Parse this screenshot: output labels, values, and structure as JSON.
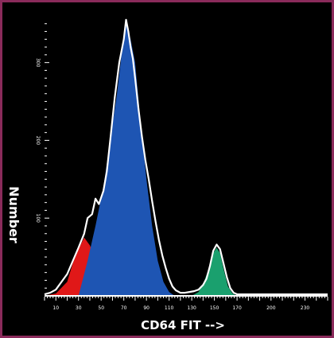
{
  "chart_data": {
    "type": "area",
    "title": "",
    "xlabel": "CD64 FIT -->",
    "ylabel": "Number",
    "xlim": [
      0,
      250
    ],
    "ylim": [
      0,
      360
    ],
    "x_ticks": [
      "10",
      "30",
      "50",
      "70",
      "90",
      "110",
      "130",
      "150",
      "170",
      "200",
      "230"
    ],
    "y_ticks": [
      "100",
      "200",
      "300"
    ],
    "grid": false,
    "series": [
      {
        "color": "#e01818",
        "x": [
          0,
          10,
          20,
          25,
          30,
          35,
          40,
          43,
          46,
          50,
          55,
          60,
          65,
          70,
          75
        ],
        "values": [
          0,
          3,
          18,
          42,
          60,
          75,
          65,
          55,
          62,
          58,
          40,
          28,
          18,
          8,
          0
        ]
      },
      {
        "color": "#1e55b3",
        "x": [
          30,
          38,
          45,
          52,
          58,
          64,
          68,
          72,
          76,
          80,
          85,
          90,
          95,
          100,
          105,
          110,
          115
        ],
        "values": [
          0,
          45,
          90,
          140,
          200,
          260,
          310,
          350,
          330,
          300,
          220,
          150,
          90,
          45,
          18,
          5,
          0
        ]
      },
      {
        "color": "#1aa06e",
        "x": [
          130,
          136,
          140,
          145,
          149,
          152,
          155,
          158,
          162,
          166,
          170
        ],
        "values": [
          0,
          5,
          15,
          35,
          55,
          62,
          55,
          35,
          12,
          3,
          0
        ]
      }
    ],
    "outline_color": "#ffffff",
    "outline": {
      "x": [
        0,
        5,
        10,
        15,
        20,
        25,
        30,
        35,
        38,
        42,
        45,
        48,
        52,
        55,
        58,
        62,
        66,
        70,
        72,
        74,
        76,
        78,
        80,
        83,
        86,
        89,
        92,
        95,
        98,
        101,
        104,
        107,
        110,
        113,
        116,
        120,
        124,
        128,
        132,
        136,
        140,
        143,
        146,
        149,
        152,
        155,
        158,
        161,
        164,
        167,
        170,
        175,
        200,
        250
      ],
      "values": [
        2,
        4,
        8,
        18,
        28,
        45,
        62,
        80,
        100,
        105,
        125,
        118,
        135,
        160,
        200,
        255,
        300,
        330,
        355,
        340,
        320,
        305,
        280,
        240,
        205,
        175,
        150,
        122,
        96,
        72,
        52,
        36,
        22,
        12,
        7,
        4,
        4,
        5,
        6,
        8,
        14,
        22,
        38,
        58,
        66,
        60,
        42,
        24,
        10,
        4,
        2,
        2,
        2,
        2
      ]
    }
  }
}
